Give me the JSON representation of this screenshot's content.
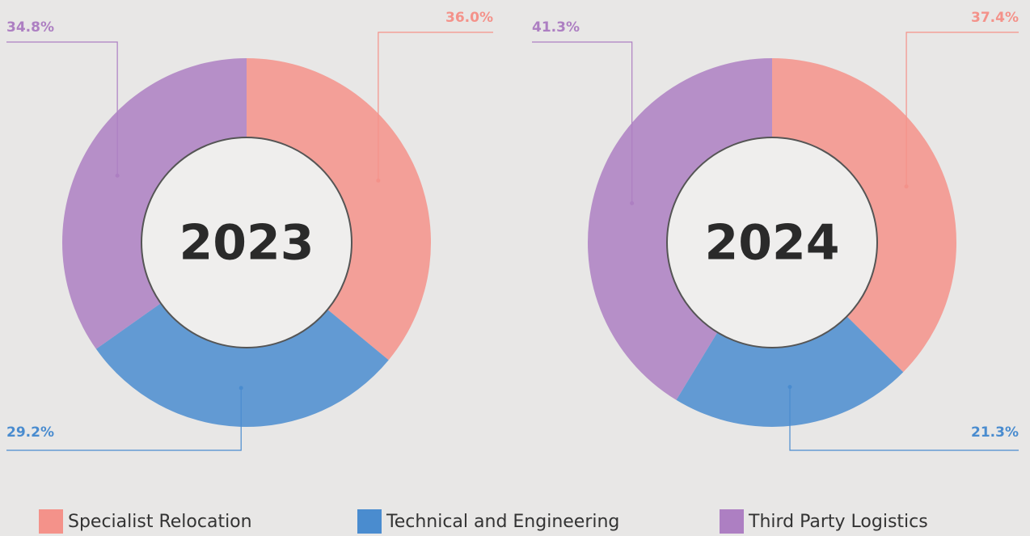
{
  "chart_data": [
    {
      "type": "donut",
      "title": "2023",
      "categories": [
        "Specialist Relocation",
        "Technical and Engineering",
        "Third Party Logistics"
      ],
      "values": [
        36.0,
        29.2,
        34.8
      ],
      "value_labels": [
        "36.0%",
        "29.2%",
        "34.8%"
      ],
      "colors": [
        "#f4928a",
        "#4a8ccf",
        "#ad7fc2"
      ]
    },
    {
      "type": "donut",
      "title": "2024",
      "categories": [
        "Specialist Relocation",
        "Technical and Engineering",
        "Third Party Logistics"
      ],
      "values": [
        37.4,
        21.3,
        41.3
      ],
      "value_labels": [
        "37.4%",
        "21.3%",
        "41.3%"
      ],
      "colors": [
        "#f4928a",
        "#4a8ccf",
        "#ad7fc2"
      ]
    }
  ]
}
